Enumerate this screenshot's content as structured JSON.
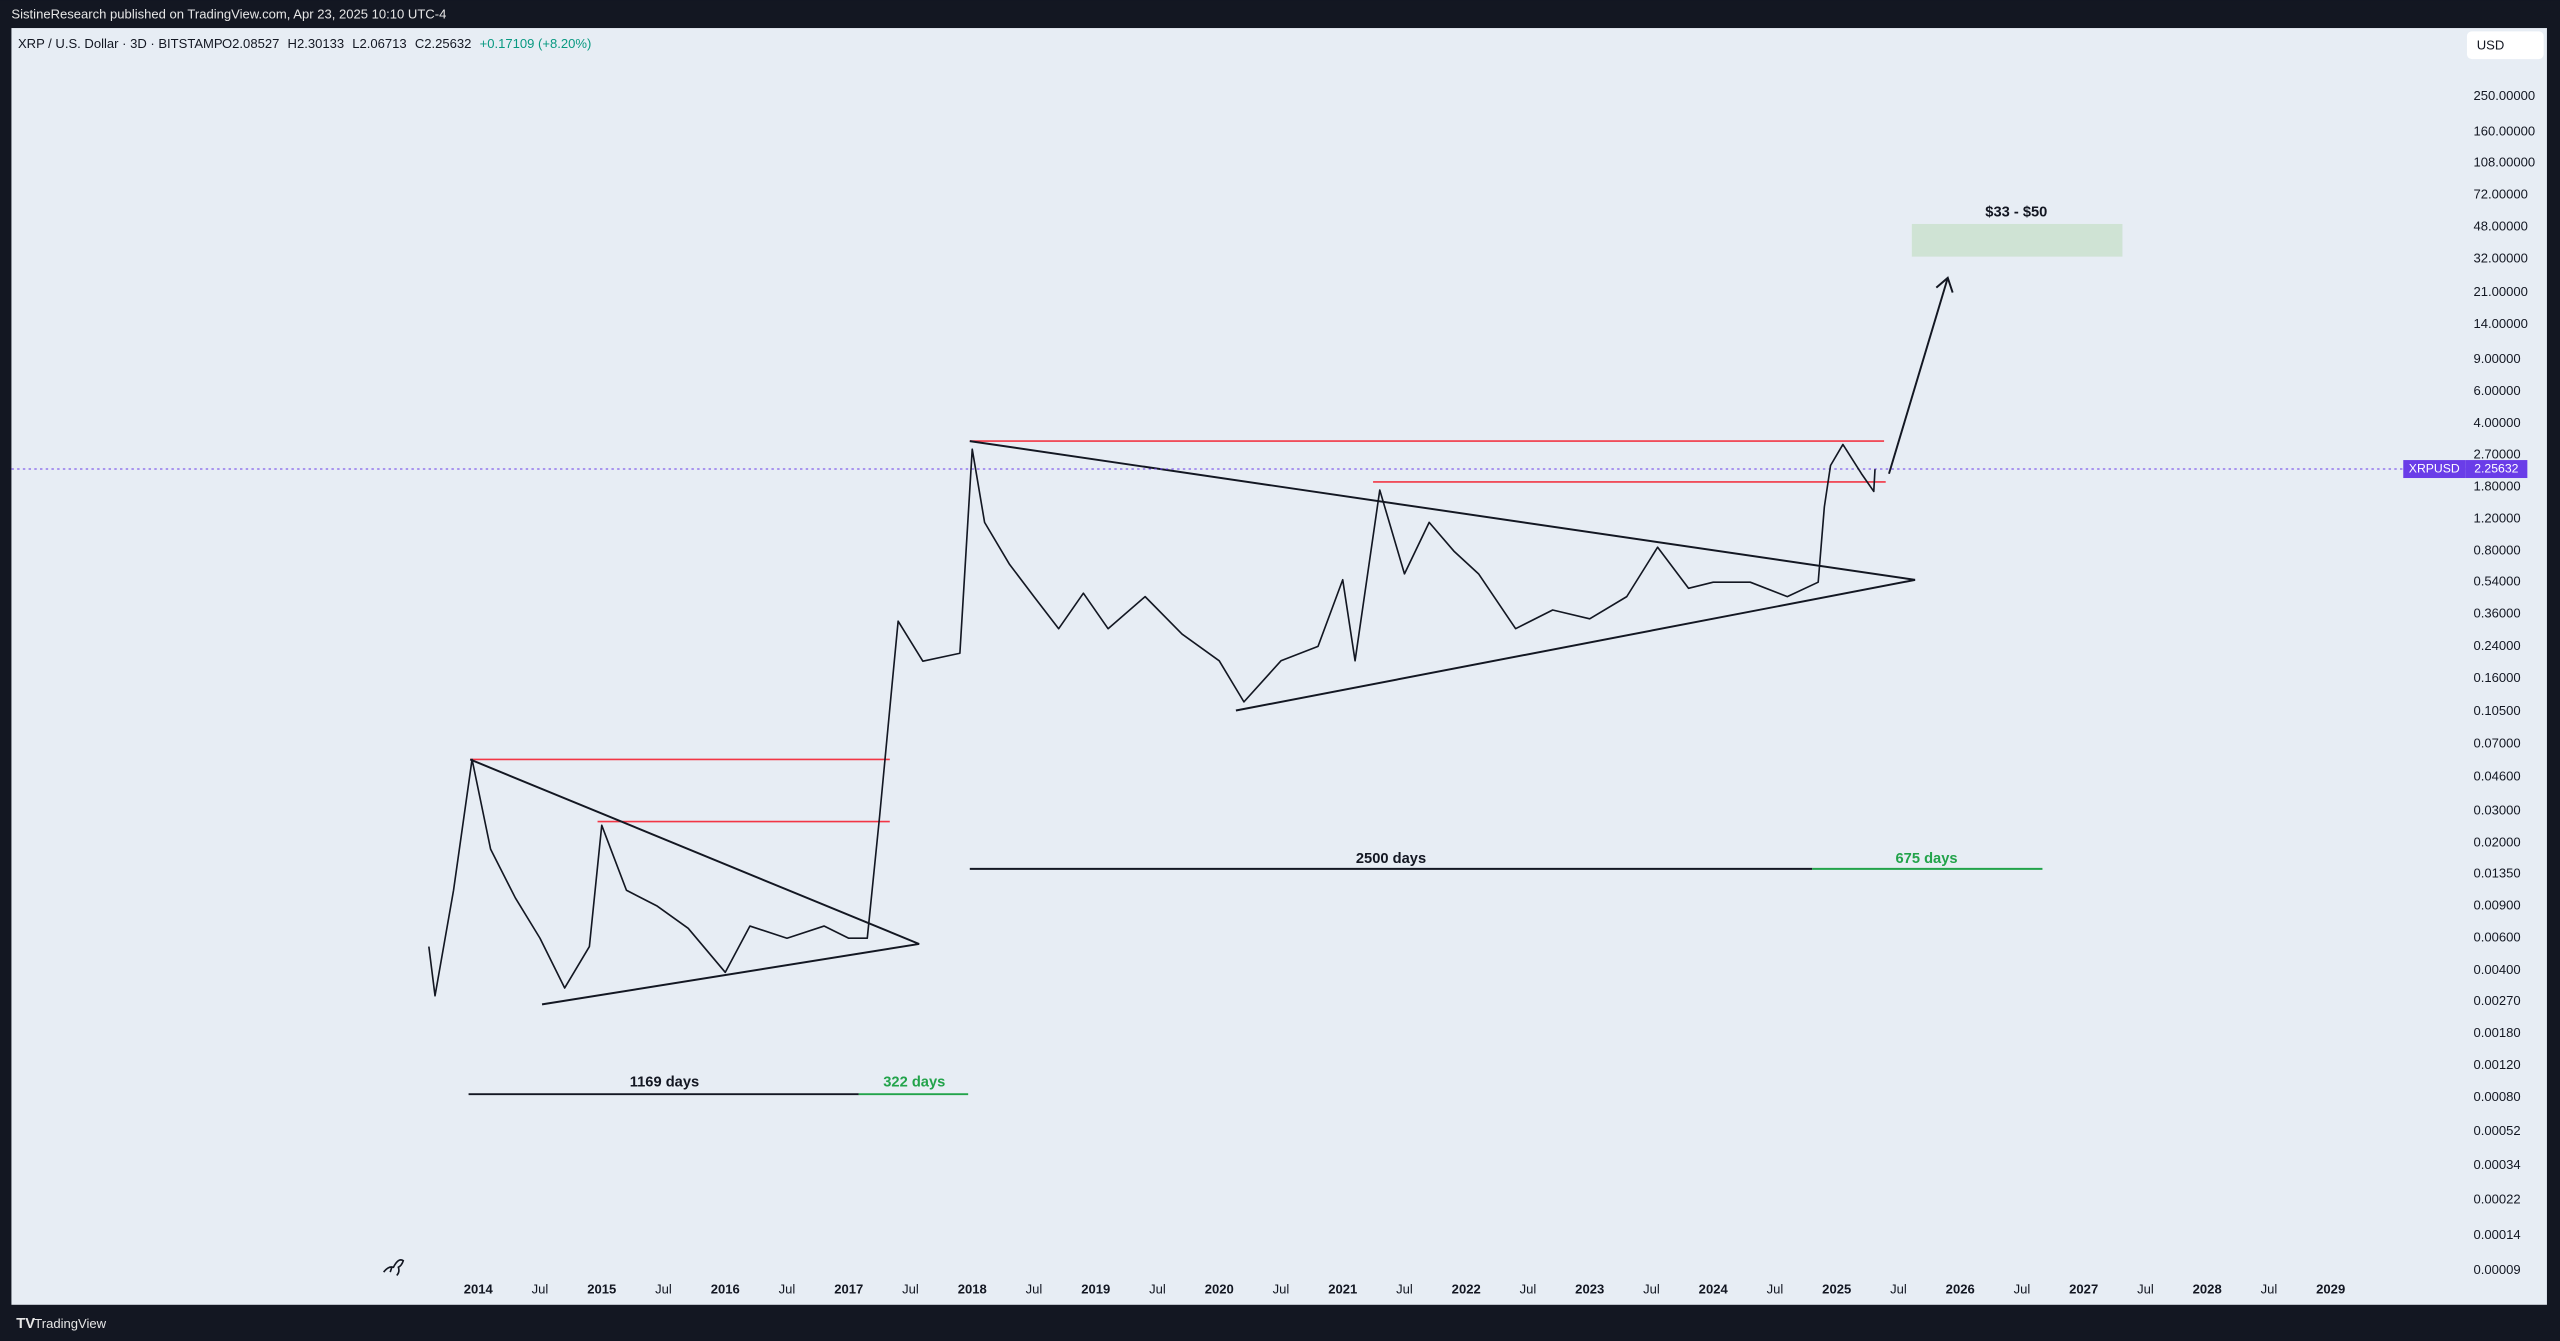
{
  "header": {
    "text": "SistineResearch published on TradingView.com, Apr 23, 2025 10:10 UTC-4"
  },
  "footer": {
    "brand": "TradingView"
  },
  "chart_data": {
    "type": "line",
    "title": "XRP / U.S. Dollar · 3D · BITSTAMP",
    "ohlc": [
      "O2.08527",
      "H2.30133",
      "L2.06713",
      "C2.25632",
      "+0.17109 (+8.20%)"
    ],
    "currency": "USD",
    "log_scale": true,
    "grid": false,
    "annotations": [
      "$33 - $50",
      "2500 days",
      "675 days",
      "1169 days",
      "322 days"
    ],
    "last_price": 2.25632,
    "x": [
      2013.6,
      2013.65,
      2013.8,
      2013.95,
      2014.1,
      2014.3,
      2014.5,
      2014.7,
      2014.9,
      2015.0,
      2015.2,
      2015.45,
      2015.7,
      2016.0,
      2016.2,
      2016.5,
      2016.8,
      2017.0,
      2017.15,
      2017.25,
      2017.35,
      2017.4,
      2017.6,
      2017.9,
      2018.0,
      2018.1,
      2018.3,
      2018.5,
      2018.7,
      2018.9,
      2019.1,
      2019.4,
      2019.7,
      2020.0,
      2020.2,
      2020.5,
      2020.8,
      2021.0,
      2021.1,
      2021.3,
      2021.5,
      2021.7,
      2021.9,
      2022.1,
      2022.4,
      2022.7,
      2023.0,
      2023.3,
      2023.55,
      2023.8,
      2024.0,
      2024.3,
      2024.6,
      2024.85,
      2024.9,
      2024.95,
      2025.05,
      2025.2,
      2025.3,
      2025.31
    ],
    "series": [
      {
        "name": "XRPUSD",
        "color": "#131722",
        "values": [
          0.0054,
          0.0029,
          0.011,
          0.0575,
          0.0185,
          0.01,
          0.006,
          0.0032,
          0.0054,
          0.025,
          0.011,
          0.009,
          0.0068,
          0.0039,
          0.007,
          0.006,
          0.007,
          0.006,
          0.006,
          0.028,
          0.146,
          0.33,
          0.199,
          0.22,
          2.9,
          1.15,
          0.68,
          0.45,
          0.3,
          0.47,
          0.3,
          0.45,
          0.28,
          0.2,
          0.119,
          0.2,
          0.24,
          0.557,
          0.2,
          1.73,
          0.6,
          1.15,
          0.8,
          0.6,
          0.3,
          0.38,
          0.34,
          0.45,
          0.84,
          0.5,
          0.54,
          0.54,
          0.45,
          0.54,
          1.4,
          2.36,
          3.08,
          2.13,
          1.7,
          2.25
        ]
      }
    ],
    "xlim": [
      2010.22,
      2030.09
    ],
    "ylim": [
      5.96e-05,
      582
    ],
    "xticks": [
      {
        "value": 2014,
        "label": "2014"
      },
      {
        "value": 2014.5,
        "label": "Jul"
      },
      {
        "value": 2015,
        "label": "2015"
      },
      {
        "value": 2015.5,
        "label": "Jul"
      },
      {
        "value": 2016,
        "label": "2016"
      },
      {
        "value": 2016.5,
        "label": "Jul"
      },
      {
        "value": 2017,
        "label": "2017"
      },
      {
        "value": 2017.5,
        "label": "Jul"
      },
      {
        "value": 2018,
        "label": "2018"
      },
      {
        "value": 2018.5,
        "label": "Jul"
      },
      {
        "value": 2019,
        "label": "2019"
      },
      {
        "value": 2019.5,
        "label": "Jul"
      },
      {
        "value": 2020,
        "label": "2020"
      },
      {
        "value": 2020.5,
        "label": "Jul"
      },
      {
        "value": 2021,
        "label": "2021"
      },
      {
        "value": 2021.5,
        "label": "Jul"
      },
      {
        "value": 2022,
        "label": "2022"
      },
      {
        "value": 2022.5,
        "label": "Jul"
      },
      {
        "value": 2023,
        "label": "2023"
      },
      {
        "value": 2023.5,
        "label": "Jul"
      },
      {
        "value": 2024,
        "label": "2024"
      },
      {
        "value": 2024.5,
        "label": "Jul"
      },
      {
        "value": 2025,
        "label": "2025"
      },
      {
        "value": 2025.5,
        "label": "Jul"
      },
      {
        "value": 2026,
        "label": "2026"
      },
      {
        "value": 2026.5,
        "label": "Jul"
      },
      {
        "value": 2027,
        "label": "2027"
      },
      {
        "value": 2027.5,
        "label": "Jul"
      },
      {
        "value": 2028,
        "label": "2028"
      },
      {
        "value": 2028.5,
        "label": "Jul"
      },
      {
        "value": 2029,
        "label": "2029"
      }
    ],
    "yticks": [
      {
        "value": 250,
        "label": "250.00000"
      },
      {
        "value": 160,
        "label": "160.00000"
      },
      {
        "value": 108,
        "label": "108.00000"
      },
      {
        "value": 72,
        "label": "72.00000"
      },
      {
        "value": 48,
        "label": "48.00000"
      },
      {
        "value": 32,
        "label": "32.00000"
      },
      {
        "value": 21,
        "label": "21.00000"
      },
      {
        "value": 14,
        "label": "14.00000"
      },
      {
        "value": 9,
        "label": "9.00000"
      },
      {
        "value": 6,
        "label": "6.00000"
      },
      {
        "value": 4,
        "label": "4.00000"
      },
      {
        "value": 2.7,
        "label": "2.70000"
      },
      {
        "value": 1.8,
        "label": "1.80000"
      },
      {
        "value": 1.2,
        "label": "1.20000"
      },
      {
        "value": 0.8,
        "label": "0.80000"
      },
      {
        "value": 0.54,
        "label": "0.54000"
      },
      {
        "value": 0.36,
        "label": "0.36000"
      },
      {
        "value": 0.24,
        "label": "0.24000"
      },
      {
        "value": 0.16,
        "label": "0.16000"
      },
      {
        "value": 0.105,
        "label": "0.10500"
      },
      {
        "value": 0.07,
        "label": "0.07000"
      },
      {
        "value": 0.046,
        "label": "0.04600"
      },
      {
        "value": 0.03,
        "label": "0.03000"
      },
      {
        "value": 0.02,
        "label": "0.02000"
      },
      {
        "value": 0.0135,
        "label": "0.01350"
      },
      {
        "value": 0.009,
        "label": "0.00900"
      },
      {
        "value": 0.006,
        "label": "0.00600"
      },
      {
        "value": 0.004,
        "label": "0.00400"
      },
      {
        "value": 0.0027,
        "label": "0.00270"
      },
      {
        "value": 0.0018,
        "label": "0.00180"
      },
      {
        "value": 0.0012,
        "label": "0.00120"
      },
      {
        "value": 0.0008,
        "label": "0.00080"
      },
      {
        "value": 0.00052,
        "label": "0.00052"
      },
      {
        "value": 0.00034,
        "label": "0.00034"
      },
      {
        "value": 0.00022,
        "label": "0.00022"
      },
      {
        "value": 0.00014,
        "label": "0.00014"
      },
      {
        "value": 9e-05,
        "label": "0.00009"
      }
    ]
  }
}
